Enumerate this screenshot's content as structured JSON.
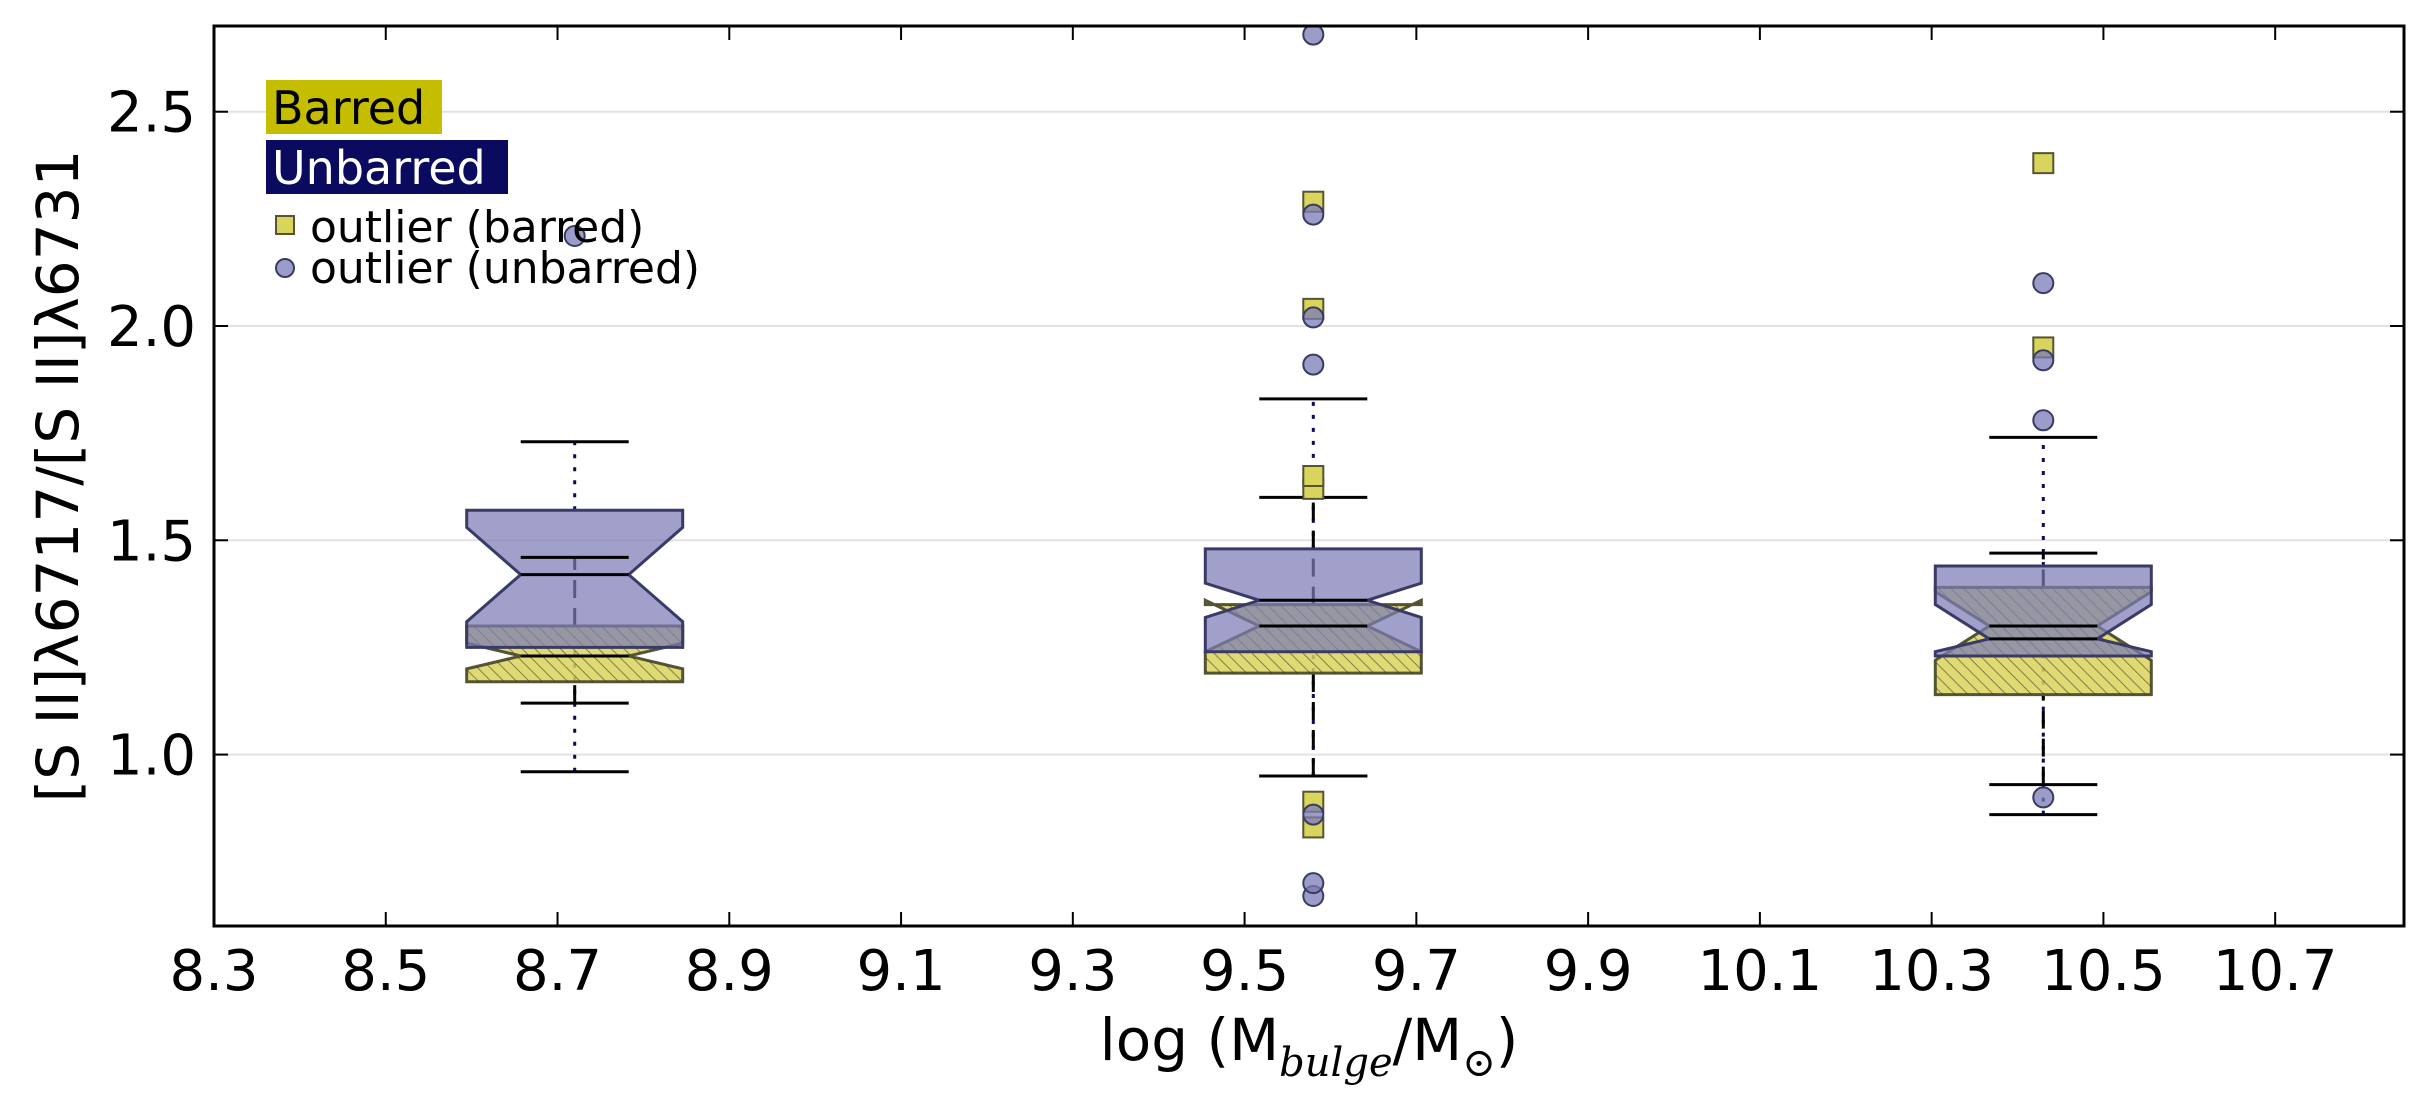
{
  "chart_data": {
    "type": "boxplot",
    "title": "",
    "xlabel": {
      "prefix": "log (M",
      "sub": "bulge",
      "mid": "/M",
      "sun": "⊙",
      "suffix": ")"
    },
    "ylabel": "[S II]λ6717/[S II]λ6731",
    "xlim": [
      8.3,
      10.85
    ],
    "ylim": [
      0.6,
      2.7
    ],
    "xticks": [
      8.3,
      8.5,
      8.7,
      8.9,
      9.1,
      9.3,
      9.5,
      9.7,
      9.9,
      10.1,
      10.3,
      10.5,
      10.7
    ],
    "xtick_labels": [
      "8.3",
      "8.5",
      "8.7",
      "8.9",
      "9.1",
      "9.3",
      "9.5",
      "9.7",
      "9.9",
      "10.1",
      "10.3",
      "10.5",
      "10.7"
    ],
    "yticks": [
      1.0,
      1.5,
      2.0,
      2.5
    ],
    "ytick_labels": [
      "1.0",
      "1.5",
      "2.0",
      "2.5"
    ],
    "grid": "horizontal",
    "legend_placement": "top-left",
    "colors": {
      "barred_fill": "#d9d45c",
      "barred_edge": "#555533",
      "barred_label_bg": "#c4bd00",
      "unbarred_fill": "#7b7bb5",
      "unbarred_edge": "#3a3a66",
      "unbarred_label_bg": "#0a0a5e",
      "overlap_fill": "#5f5f74"
    },
    "legend": {
      "barred": "Barred",
      "unbarred": "Unbarred",
      "outlier_barred": "outlier (barred)",
      "outlier_unbarred": "outlier (unbarred)"
    },
    "series": [
      {
        "name": "Barred",
        "boxes": [
          {
            "x": 8.72,
            "whisker_low": 1.12,
            "q1": 1.17,
            "notch_low": 1.2,
            "median": 1.23,
            "notch_high": 1.26,
            "q3": 1.3,
            "whisker_high": 1.46,
            "outliers": []
          },
          {
            "x": 9.58,
            "whisker_low": 0.95,
            "q1": 1.19,
            "notch_low": 1.24,
            "median": 1.3,
            "notch_high": 1.36,
            "q3": 1.35,
            "whisker_high": 1.6,
            "outliers": [
              0.83,
              0.89,
              1.62,
              1.65,
              2.04,
              2.29
            ]
          },
          {
            "x": 10.43,
            "whisker_low": 0.93,
            "q1": 1.14,
            "notch_low": 1.22,
            "median": 1.3,
            "notch_high": 1.38,
            "q3": 1.39,
            "whisker_high": 1.47,
            "outliers": [
              1.95,
              2.38
            ]
          }
        ]
      },
      {
        "name": "Unbarred",
        "boxes": [
          {
            "x": 8.72,
            "whisker_low": 0.96,
            "q1": 1.25,
            "notch_low": 1.31,
            "median": 1.42,
            "notch_high": 1.53,
            "q3": 1.57,
            "whisker_high": 1.73,
            "outliers": [
              2.21
            ]
          },
          {
            "x": 9.58,
            "whisker_low": 0.95,
            "q1": 1.24,
            "notch_low": 1.32,
            "median": 1.36,
            "notch_high": 1.4,
            "q3": 1.48,
            "whisker_high": 1.83,
            "outliers": [
              0.67,
              0.7,
              0.86,
              1.91,
              2.02,
              2.26,
              2.68
            ]
          },
          {
            "x": 10.43,
            "whisker_low": 0.86,
            "q1": 1.23,
            "notch_low": 1.24,
            "median": 1.27,
            "notch_high": 1.35,
            "q3": 1.44,
            "whisker_high": 1.74,
            "outliers": [
              0.9,
              1.78,
              1.92,
              2.1
            ]
          }
        ]
      }
    ]
  }
}
